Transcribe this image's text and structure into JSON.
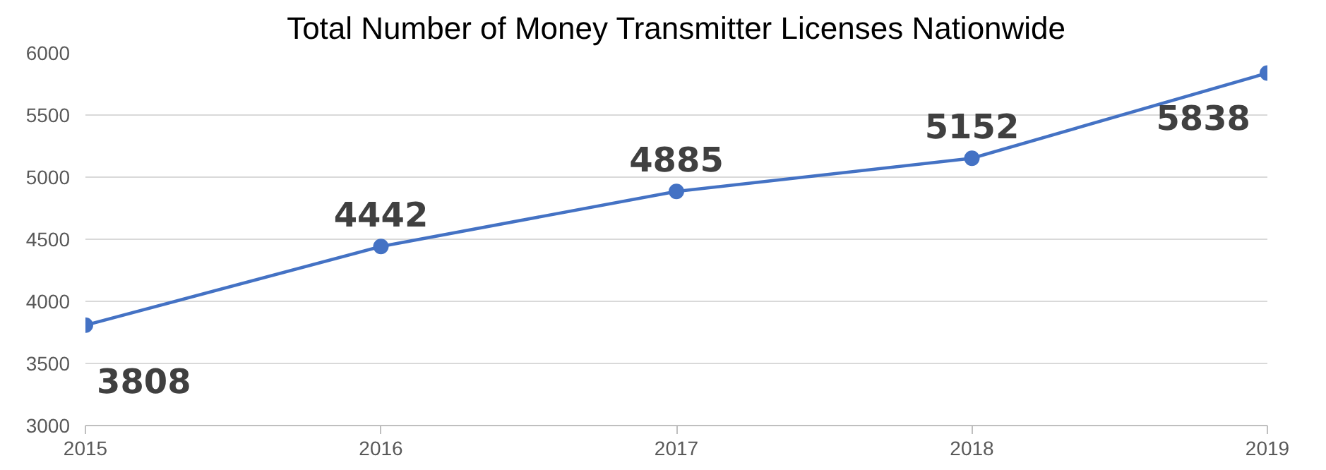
{
  "chart_data": {
    "type": "line",
    "title": "Total Number of Money Transmitter Licenses Nationwide",
    "x": [
      2015,
      2016,
      2017,
      2018,
      2019
    ],
    "series": [
      {
        "color": "#4472c4",
        "values": [
          3808,
          4442,
          4885,
          5152,
          5838
        ]
      }
    ],
    "xlim": [
      2015,
      2019
    ],
    "xticks": [
      2015,
      2016,
      2017,
      2018,
      2019
    ],
    "ylim": [
      3000,
      6000
    ],
    "yticks": [
      3000,
      3500,
      4000,
      4500,
      5000,
      5500,
      6000
    ],
    "grid": "y",
    "marker": "circle",
    "line_style": "solid",
    "data_labels": true
  }
}
